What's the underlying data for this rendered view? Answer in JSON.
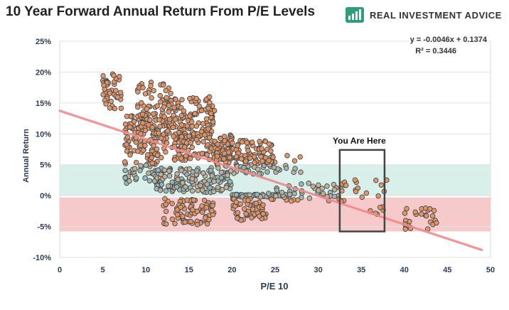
{
  "title": "10 Year Forward Annual Return From P/E Levels",
  "brand": {
    "name": "REAL INVESTMENT ADVICE",
    "logo_icon": "chart-logo-icon",
    "logo_color": "#2e9e7a"
  },
  "chart_data": {
    "type": "scatter",
    "title": "10 Year Forward Annual Return From P/E Levels",
    "xlabel": "P/E 10",
    "ylabel": "Annual Return",
    "xlim": [
      0,
      50
    ],
    "ylim": [
      -0.1,
      0.25
    ],
    "x_ticks": [
      "0",
      "5",
      "10",
      "15",
      "20",
      "25",
      "30",
      "35",
      "40",
      "45",
      "50"
    ],
    "y_ticks": [
      "-10%",
      "-5%",
      "0%",
      "5%",
      "10%",
      "15%",
      "20%",
      "25%"
    ],
    "grid": "horizontal",
    "colors": {
      "point_fill": "#e8915a",
      "point_edge": "#3a4a5a",
      "trend": "#f08a8a",
      "positive_band": "#d9efe9",
      "negative_band": "#f6caca",
      "box": "#444444"
    },
    "trendline": {
      "slope": -0.0046,
      "intercept": 0.1374,
      "equation": "y = -0.0046x + 0.1374",
      "r_squared": "R² = 0.3446"
    },
    "bands": [
      {
        "from": 0,
        "to": 0.05
      },
      {
        "from": -0.058,
        "to": -0.003
      }
    ],
    "annotation": {
      "text": "You Are Here",
      "x_range": [
        32.5,
        37.7
      ],
      "y_range": [
        -0.058,
        0.074
      ]
    },
    "clusters": [
      {
        "x": [
          5,
          7.2
        ],
        "y": [
          0.14,
          0.2
        ],
        "n": 45
      },
      {
        "x": [
          7.5,
          12.5
        ],
        "y": [
          0.07,
          0.13
        ],
        "n": 120
      },
      {
        "x": [
          9,
          13
        ],
        "y": [
          0.11,
          0.185
        ],
        "n": 70
      },
      {
        "x": [
          12.5,
          18
        ],
        "y": [
          0.09,
          0.16
        ],
        "n": 130
      },
      {
        "x": [
          13,
          20
        ],
        "y": [
          0.055,
          0.1
        ],
        "n": 110
      },
      {
        "x": [
          18,
          25
        ],
        "y": [
          0.045,
          0.09
        ],
        "n": 110
      },
      {
        "x": [
          20,
          28
        ],
        "y": [
          0.035,
          0.065
        ],
        "n": 45
      },
      {
        "x": [
          7.5,
          12
        ],
        "y": [
          0.02,
          0.07
        ],
        "n": 60
      },
      {
        "x": [
          11,
          20
        ],
        "y": [
          0.005,
          0.045
        ],
        "n": 140
      },
      {
        "x": [
          20,
          27
        ],
        "y": [
          -0.002,
          0.002
        ],
        "n": 60
      },
      {
        "x": [
          24,
          33
        ],
        "y": [
          -0.01,
          0.02
        ],
        "n": 50
      },
      {
        "x": [
          12,
          18
        ],
        "y": [
          -0.047,
          -0.005
        ],
        "n": 80
      },
      {
        "x": [
          20,
          24
        ],
        "y": [
          -0.04,
          -0.005
        ],
        "n": 50
      },
      {
        "x": [
          33,
          38
        ],
        "y": [
          -0.005,
          0.04
        ],
        "n": 14
      },
      {
        "x": [
          36,
          38
        ],
        "y": [
          -0.035,
          -0.015
        ],
        "n": 6
      },
      {
        "x": [
          40,
          44
        ],
        "y": [
          -0.06,
          -0.02
        ],
        "n": 25
      }
    ]
  }
}
